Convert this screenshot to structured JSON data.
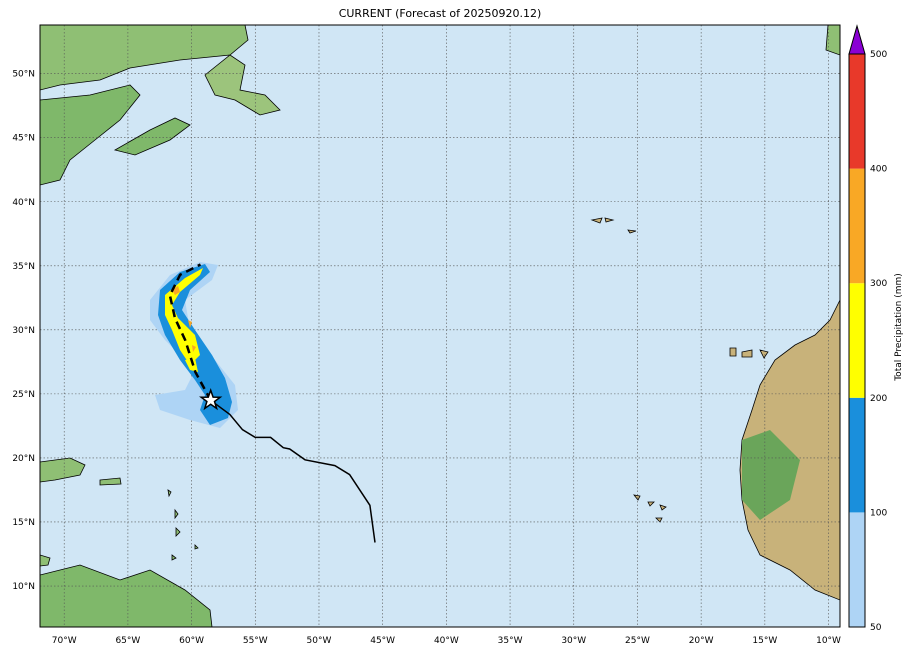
{
  "title": "CURRENT (Forecast of 20250920.12)",
  "map": {
    "lon_range": [
      -71.9,
      -9.1
    ],
    "lat_range": [
      6.8,
      53.8
    ],
    "lon_ticks": [
      -70,
      -65,
      -60,
      -55,
      -50,
      -45,
      -40,
      -35,
      -30,
      -25,
      -20,
      -15,
      -10
    ],
    "lon_labels": [
      "70°W",
      "65°W",
      "60°W",
      "55°W",
      "50°W",
      "45°W",
      "40°W",
      "35°W",
      "30°W",
      "25°W",
      "20°W",
      "15°W",
      "10°W"
    ],
    "lat_ticks": [
      10,
      15,
      20,
      25,
      30,
      35,
      40,
      45,
      50
    ],
    "lat_labels": [
      "10°N",
      "15°N",
      "20°N",
      "25°N",
      "30°N",
      "35°N",
      "40°N",
      "45°N",
      "50°N"
    ],
    "ocean_color": "#d0e6f5",
    "gridlines": "dotted",
    "past_track": [
      [
        -45.6,
        13.4
      ],
      [
        -46.0,
        16.3
      ],
      [
        -47.6,
        18.7
      ],
      [
        -48.75,
        19.4
      ],
      [
        -51.1,
        19.85
      ],
      [
        -52.3,
        20.7
      ],
      [
        -52.8,
        20.8
      ],
      [
        -53.8,
        21.6
      ],
      [
        -55.0,
        21.6
      ],
      [
        -56.0,
        22.2
      ],
      [
        -57.0,
        23.4
      ],
      [
        -58.5,
        24.5
      ]
    ],
    "forecast_track": [
      [
        -58.5,
        24.5
      ],
      [
        -59.7,
        26.7
      ],
      [
        -60.5,
        29.2
      ],
      [
        -61.3,
        30.9
      ],
      [
        -61.7,
        32.7
      ],
      [
        -60.9,
        34.3
      ],
      [
        -59.3,
        35.1
      ]
    ],
    "current_position": [
      -58.5,
      24.5
    ],
    "current_position_icon": "star-icon"
  },
  "colorbar": {
    "label": "Total Precipitation (mm)",
    "levels": [
      "50",
      "100",
      "200",
      "300",
      "400",
      "500"
    ],
    "colors": [
      "#aed4f5",
      "#1a8fdc",
      "#ffff00",
      "#f9a825",
      "#e8392a"
    ],
    "extend_color": "#8a00d4"
  }
}
